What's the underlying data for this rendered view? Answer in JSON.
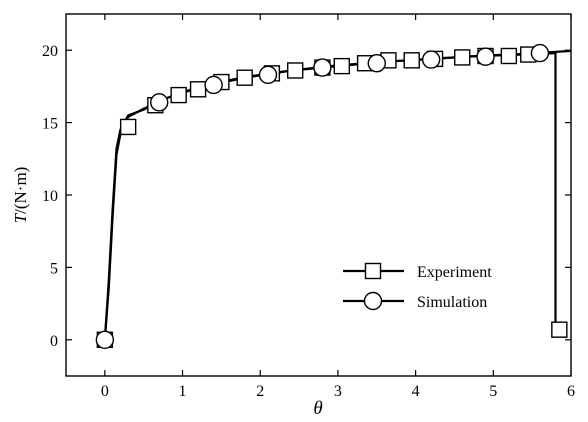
{
  "chart_data": {
    "type": "line",
    "title": "",
    "xlabel": "θ",
    "ylabel_italic": "T",
    "ylabel_unit": "/(N·m)",
    "xlim": [
      -0.5,
      6.0
    ],
    "ylim": [
      -2.5,
      22.5
    ],
    "xticks": [
      0,
      1,
      2,
      3,
      4,
      5,
      6
    ],
    "yticks": [
      0,
      5,
      10,
      15,
      20
    ],
    "xtick_labels": [
      "0",
      "1",
      "2",
      "3",
      "4",
      "5",
      "6"
    ],
    "ytick_labels": [
      "0",
      "5",
      "10",
      "15",
      "20"
    ],
    "grid": false,
    "legend_position": "lower-right",
    "series": [
      {
        "name": "Experiment",
        "marker": "square",
        "x": [
          0.0,
          0.3,
          0.65,
          0.95,
          1.2,
          1.5,
          1.8,
          2.15,
          2.45,
          2.8,
          3.05,
          3.35,
          3.65,
          3.95,
          4.25,
          4.6,
          4.9,
          5.2,
          5.45,
          5.85
        ],
        "y": [
          0.0,
          14.7,
          16.2,
          16.9,
          17.3,
          17.8,
          18.1,
          18.4,
          18.6,
          18.8,
          18.9,
          19.1,
          19.3,
          19.3,
          19.4,
          19.5,
          19.6,
          19.6,
          19.7,
          0.7
        ],
        "curve_x": [
          0.0,
          0.05,
          0.1,
          0.15,
          0.2,
          0.3,
          0.5,
          0.8,
          1.2,
          1.8,
          2.4,
          3.0,
          3.6,
          4.2,
          4.8,
          5.4,
          5.8,
          5.8,
          5.85
        ],
        "curve_y": [
          0.0,
          4.0,
          9.0,
          13.2,
          14.5,
          15.5,
          15.9,
          16.7,
          17.4,
          18.1,
          18.6,
          18.9,
          19.2,
          19.4,
          19.6,
          19.7,
          19.8,
          0.7,
          0.7
        ]
      },
      {
        "name": "Simulation",
        "marker": "circle",
        "x": [
          0.0,
          0.7,
          1.4,
          2.1,
          2.8,
          3.5,
          4.2,
          4.9,
          5.6
        ],
        "y": [
          0.0,
          16.4,
          17.6,
          18.3,
          18.8,
          19.1,
          19.35,
          19.55,
          19.8
        ],
        "curve_x": [
          0.0,
          0.05,
          0.1,
          0.15,
          0.2,
          0.3,
          0.5,
          0.8,
          1.2,
          1.8,
          2.4,
          3.0,
          3.6,
          4.2,
          4.8,
          5.4,
          6.0
        ],
        "curve_y": [
          0.0,
          3.5,
          8.5,
          12.8,
          14.2,
          15.4,
          15.95,
          16.7,
          17.45,
          18.15,
          18.6,
          18.95,
          19.2,
          19.4,
          19.6,
          19.75,
          19.95
        ]
      }
    ]
  }
}
